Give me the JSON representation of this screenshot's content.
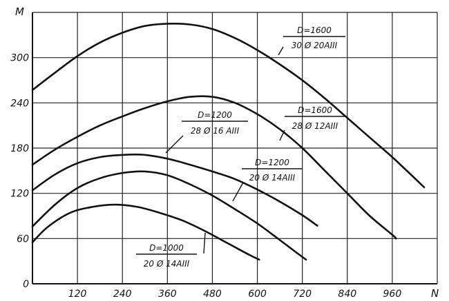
{
  "chart_data": {
    "type": "line",
    "xlabel": "N",
    "ylabel": "M",
    "xlim": [
      0,
      1080
    ],
    "ylim": [
      0,
      360
    ],
    "x_ticks": [
      120,
      240,
      360,
      480,
      600,
      720,
      840,
      960
    ],
    "y_ticks": [
      0,
      60,
      120,
      180,
      240,
      300
    ],
    "grid": true,
    "series": [
      {
        "label_lines": [
          "D=1600",
          "30 Ø 20AIII"
        ],
        "points": [
          [
            0,
            257
          ],
          [
            60,
            280
          ],
          [
            120,
            302
          ],
          [
            180,
            320
          ],
          [
            240,
            333
          ],
          [
            300,
            342
          ],
          [
            360,
            345
          ],
          [
            420,
            344
          ],
          [
            480,
            338
          ],
          [
            540,
            326
          ],
          [
            600,
            310
          ],
          [
            660,
            291
          ],
          [
            720,
            270
          ],
          [
            780,
            246
          ],
          [
            840,
            220
          ],
          [
            900,
            194
          ],
          [
            960,
            168
          ],
          [
            1020,
            140
          ],
          [
            1045,
            128
          ]
        ]
      },
      {
        "label_lines": [
          "D=1600",
          "28 Ø 12AIII"
        ],
        "points": [
          [
            0,
            158
          ],
          [
            60,
            178
          ],
          [
            120,
            195
          ],
          [
            180,
            210
          ],
          [
            240,
            222
          ],
          [
            300,
            233
          ],
          [
            360,
            242
          ],
          [
            420,
            248
          ],
          [
            480,
            248
          ],
          [
            540,
            240
          ],
          [
            600,
            225
          ],
          [
            660,
            205
          ],
          [
            720,
            180
          ],
          [
            780,
            150
          ],
          [
            840,
            120
          ],
          [
            900,
            90
          ],
          [
            960,
            65
          ],
          [
            970,
            60
          ]
        ]
      },
      {
        "label_lines": [
          "D=1200",
          "28 Ø 16 AIII"
        ],
        "points": [
          [
            0,
            124
          ],
          [
            60,
            145
          ],
          [
            120,
            160
          ],
          [
            180,
            168
          ],
          [
            240,
            171
          ],
          [
            300,
            171
          ],
          [
            360,
            166
          ],
          [
            420,
            158
          ],
          [
            480,
            149
          ],
          [
            540,
            139
          ],
          [
            600,
            125
          ],
          [
            660,
            109
          ],
          [
            720,
            91
          ],
          [
            760,
            77
          ]
        ]
      },
      {
        "label_lines": [
          "D=1200",
          "20 Ø 14AIII"
        ],
        "points": [
          [
            0,
            76
          ],
          [
            60,
            105
          ],
          [
            120,
            127
          ],
          [
            180,
            140
          ],
          [
            240,
            147
          ],
          [
            300,
            149
          ],
          [
            360,
            144
          ],
          [
            420,
            132
          ],
          [
            480,
            117
          ],
          [
            540,
            99
          ],
          [
            600,
            80
          ],
          [
            660,
            58
          ],
          [
            700,
            43
          ],
          [
            730,
            32
          ]
        ]
      },
      {
        "label_lines": [
          "D=1000",
          "20 Ø 14AIII"
        ],
        "points": [
          [
            0,
            55
          ],
          [
            40,
            75
          ],
          [
            100,
            94
          ],
          [
            160,
            102
          ],
          [
            220,
            105
          ],
          [
            280,
            102
          ],
          [
            340,
            94
          ],
          [
            400,
            84
          ],
          [
            460,
            70
          ],
          [
            520,
            54
          ],
          [
            580,
            38
          ],
          [
            605,
            32
          ]
        ]
      }
    ]
  }
}
